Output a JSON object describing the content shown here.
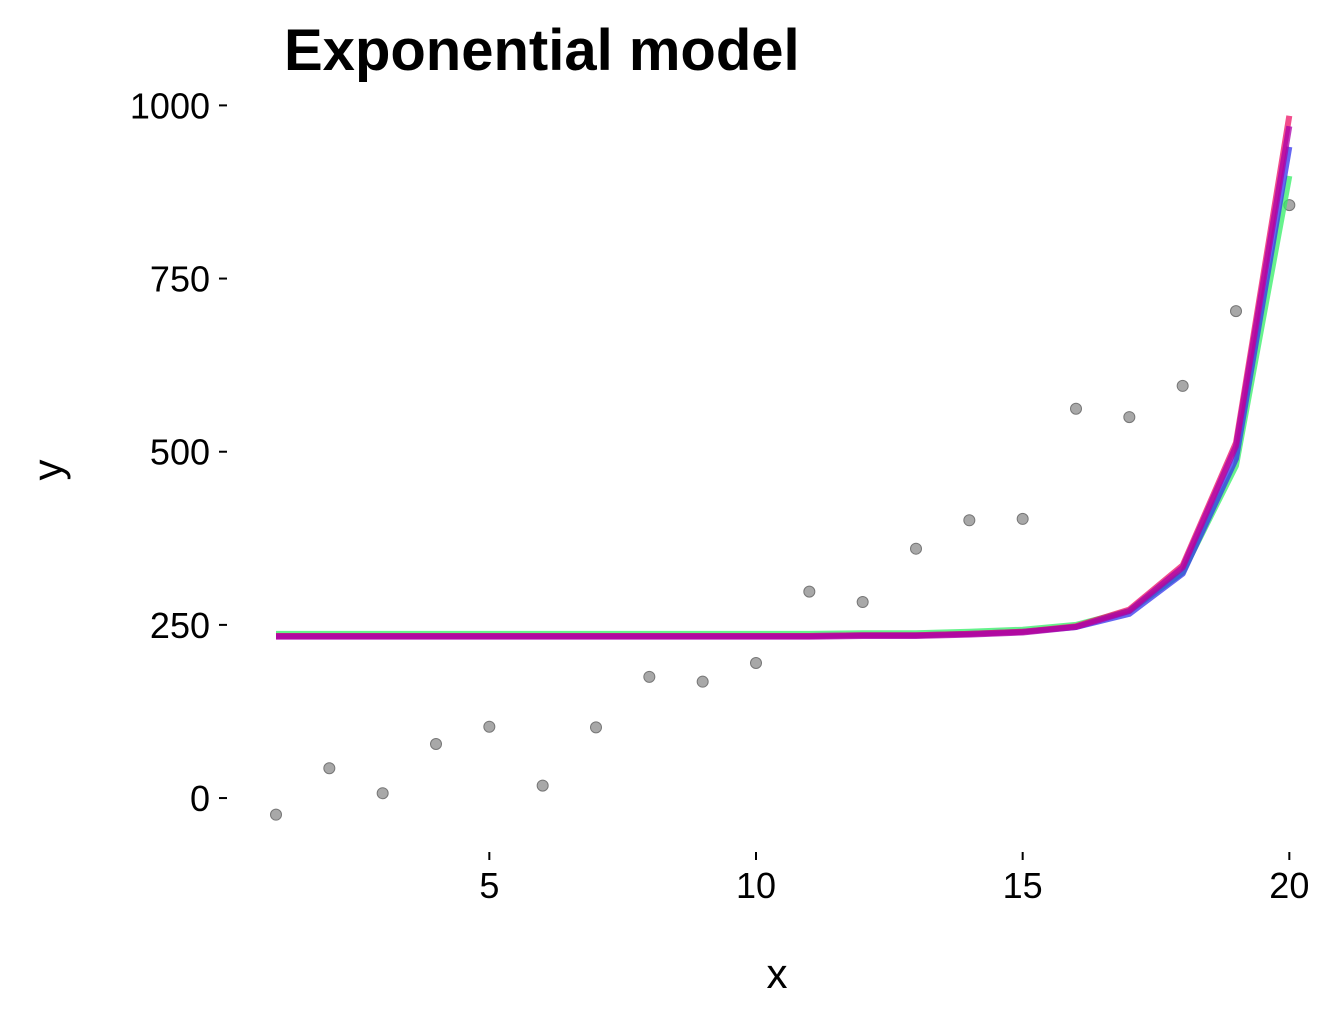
{
  "chart_data": {
    "type": "scatter",
    "title": "Exponential model",
    "xlabel": "x",
    "ylabel": "y",
    "xlim": [
      0.1,
      20.2
    ],
    "ylim": [
      -75,
      1015
    ],
    "xticks": [
      5,
      10,
      15,
      20
    ],
    "yticks": [
      0,
      250,
      500,
      750,
      1000
    ],
    "grid": false,
    "legend": "none",
    "points": {
      "color": "#999999",
      "x": [
        1,
        2,
        3,
        4,
        5,
        6,
        7,
        8,
        9,
        10,
        11,
        12,
        13,
        14,
        15,
        16,
        17,
        18,
        19,
        20
      ],
      "y": [
        -24,
        43,
        7,
        78,
        103,
        18,
        102,
        175,
        168,
        195,
        298,
        283,
        360,
        401,
        403,
        562,
        550,
        595,
        703,
        856
      ]
    },
    "series": [
      {
        "color": "#33ee66",
        "x": [
          1,
          2,
          3,
          4,
          5,
          6,
          7,
          8,
          9,
          10,
          11,
          12,
          13,
          14,
          15,
          16,
          17,
          18,
          19,
          20
        ],
        "y": [
          237,
          237,
          237,
          237,
          237,
          237,
          237,
          237,
          237,
          237,
          237,
          238,
          238,
          240,
          243,
          250,
          270,
          326,
          480,
          898
        ]
      },
      {
        "color": "#3333ee",
        "x": [
          1,
          2,
          3,
          4,
          5,
          6,
          7,
          8,
          9,
          10,
          11,
          12,
          13,
          14,
          15,
          16,
          17,
          18,
          19,
          20
        ],
        "y": [
          234,
          234,
          234,
          234,
          234,
          234,
          234,
          234,
          234,
          234,
          234,
          235,
          235,
          237,
          240,
          247,
          266,
          324,
          490,
          940
        ]
      },
      {
        "color": "#ee1166",
        "x": [
          1,
          2,
          3,
          4,
          5,
          6,
          7,
          8,
          9,
          10,
          11,
          12,
          13,
          14,
          15,
          16,
          17,
          18,
          19,
          20
        ],
        "y": [
          234,
          234,
          234,
          234,
          234,
          234,
          234,
          234,
          234,
          234,
          234,
          235,
          235,
          237,
          240,
          248,
          272,
          336,
          513,
          985
        ]
      },
      {
        "color": "#aa00aa",
        "x": [
          1,
          2,
          3,
          4,
          5,
          6,
          7,
          8,
          9,
          10,
          11,
          12,
          13,
          14,
          15,
          16,
          17,
          18,
          19,
          20
        ],
        "y": [
          233,
          233,
          233,
          233,
          233,
          233,
          233,
          233,
          233,
          233,
          233,
          234,
          234,
          236,
          239,
          247,
          270,
          333,
          508,
          970
        ]
      }
    ]
  }
}
